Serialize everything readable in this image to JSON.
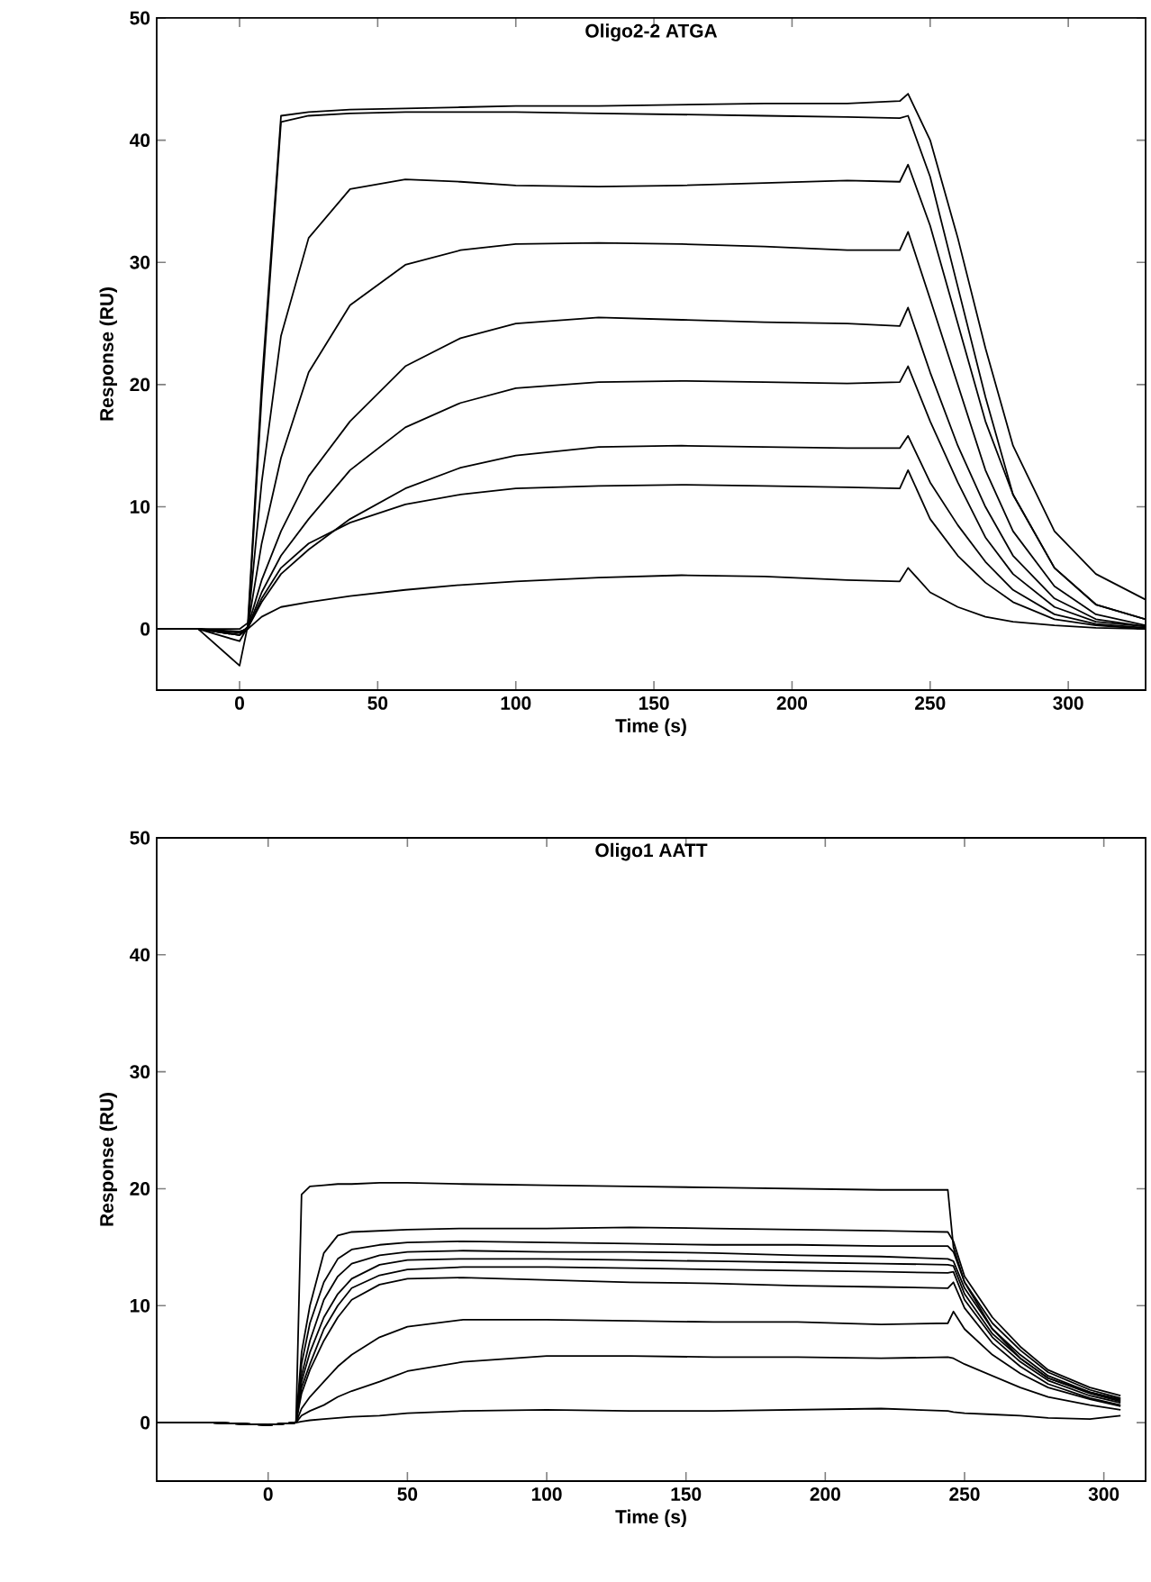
{
  "chart_data": [
    {
      "type": "line",
      "title": "Oligo2-2  ATGA",
      "xlabel": "Time (s)",
      "ylabel": "Response (RU)",
      "xlim": [
        -30,
        328
      ],
      "ylim": [
        -5,
        50
      ],
      "xticks": [
        0,
        50,
        100,
        150,
        200,
        250,
        300
      ],
      "yticks": [
        0,
        10,
        20,
        30,
        40,
        50
      ],
      "x": [
        -30,
        -15,
        0,
        3,
        8,
        15,
        25,
        40,
        60,
        80,
        100,
        130,
        160,
        190,
        220,
        239,
        242,
        250,
        260,
        270,
        280,
        295,
        310,
        328
      ],
      "series": [
        {
          "color": "#000000",
          "values": [
            0,
            0,
            0,
            0.5,
            20,
            42,
            42.3,
            42.5,
            42.6,
            42.7,
            42.8,
            42.8,
            42.9,
            43,
            43,
            43.2,
            43.8,
            40,
            32,
            23,
            15,
            8,
            4.5,
            2.4
          ]
        },
        {
          "color": "#000000",
          "values": [
            0,
            0,
            -0.5,
            0,
            19,
            41.5,
            42,
            42.2,
            42.3,
            42.3,
            42.3,
            42.2,
            42.1,
            42,
            41.9,
            41.8,
            42,
            37,
            28,
            19,
            11,
            5,
            2,
            0.8
          ]
        },
        {
          "color": "#000000",
          "values": [
            0,
            0,
            -3,
            0.3,
            12,
            24,
            32,
            36,
            36.8,
            36.6,
            36.3,
            36.2,
            36.3,
            36.5,
            36.7,
            36.6,
            38,
            33,
            25,
            17,
            11,
            5,
            2,
            0.8
          ]
        },
        {
          "color": "#000000",
          "values": [
            0,
            0,
            -1,
            0.2,
            7,
            14,
            21,
            26.5,
            29.8,
            31,
            31.5,
            31.6,
            31.5,
            31.3,
            31,
            31,
            32.5,
            27,
            20,
            13,
            8,
            3.5,
            1.2,
            0.3
          ]
        },
        {
          "color": "#000000",
          "values": [
            0,
            0,
            -0.5,
            0.2,
            4,
            8,
            12.5,
            17,
            21.5,
            23.8,
            25,
            25.5,
            25.3,
            25.1,
            25,
            24.8,
            26.3,
            21,
            15,
            10,
            6,
            2.5,
            0.8,
            0.2
          ]
        },
        {
          "color": "#000000",
          "values": [
            0,
            0,
            -0.5,
            0.1,
            3,
            6,
            9,
            13,
            16.5,
            18.5,
            19.7,
            20.2,
            20.3,
            20.2,
            20.1,
            20.2,
            21.5,
            17,
            12,
            7.5,
            4.5,
            1.8,
            0.6,
            0.2
          ]
        },
        {
          "color": "#000000",
          "values": [
            0,
            0,
            -0.3,
            0.1,
            2.2,
            4.5,
            6.5,
            9,
            11.5,
            13.2,
            14.2,
            14.9,
            15,
            14.9,
            14.8,
            14.8,
            15.8,
            12,
            8.5,
            5.5,
            3.2,
            1.2,
            0.4,
            0.1
          ]
        },
        {
          "color": "#000000",
          "values": [
            0,
            0,
            -0.3,
            0.1,
            2.5,
            5,
            7,
            8.7,
            10.2,
            11,
            11.5,
            11.7,
            11.8,
            11.7,
            11.6,
            11.5,
            13,
            9,
            6,
            3.8,
            2.2,
            0.8,
            0.3,
            0
          ]
        },
        {
          "color": "#000000",
          "values": [
            0,
            0,
            -0.2,
            0,
            1,
            1.8,
            2.2,
            2.7,
            3.2,
            3.6,
            3.9,
            4.2,
            4.4,
            4.3,
            4,
            3.9,
            5,
            3,
            1.8,
            1,
            0.6,
            0.3,
            0.1,
            0
          ]
        }
      ]
    },
    {
      "type": "line",
      "title": "Oligo1  AATT",
      "xlabel": "Time (s)",
      "ylabel": "Response (RU)",
      "xlim": [
        -40,
        315
      ],
      "ylim": [
        -5,
        50
      ],
      "xticks": [
        0,
        50,
        100,
        150,
        200,
        250,
        300
      ],
      "yticks": [
        0,
        10,
        20,
        30,
        40,
        50
      ],
      "x": [
        -40,
        -20,
        0,
        10,
        12,
        15,
        20,
        25,
        30,
        40,
        50,
        70,
        100,
        130,
        160,
        190,
        220,
        244,
        246,
        250,
        260,
        270,
        280,
        295,
        306
      ],
      "series": [
        {
          "color": "#000000",
          "values": [
            0,
            0,
            -0.2,
            0,
            19.5,
            20.2,
            20.3,
            20.4,
            20.4,
            20.5,
            20.5,
            20.4,
            20.3,
            20.2,
            20.1,
            20,
            19.9,
            19.9,
            15,
            12,
            8,
            5.5,
            3.8,
            2.6,
            2
          ]
        },
        {
          "color": "#000000",
          "values": [
            0,
            0,
            -0.2,
            0,
            6,
            10,
            14.5,
            16,
            16.3,
            16.4,
            16.5,
            16.6,
            16.6,
            16.7,
            16.6,
            16.5,
            16.4,
            16.3,
            15.5,
            12.5,
            9,
            6.5,
            4.5,
            3,
            2.3
          ]
        },
        {
          "color": "#000000",
          "values": [
            0,
            0,
            -0.2,
            0,
            5,
            8.5,
            12,
            14,
            14.8,
            15.2,
            15.4,
            15.5,
            15.4,
            15.3,
            15.2,
            15.2,
            15.1,
            15.1,
            14.6,
            12,
            8.5,
            6.2,
            4.3,
            2.8,
            2.1
          ]
        },
        {
          "color": "#000000",
          "values": [
            0,
            0,
            -0.2,
            0,
            4,
            7,
            10.5,
            12.5,
            13.6,
            14.3,
            14.6,
            14.7,
            14.6,
            14.6,
            14.5,
            14.3,
            14.2,
            14,
            13.8,
            11.5,
            8,
            5.8,
            4,
            2.6,
            1.9
          ]
        },
        {
          "color": "#000000",
          "values": [
            0,
            0,
            -0.2,
            0,
            3.5,
            6,
            9,
            11,
            12.3,
            13.5,
            13.9,
            14,
            14,
            13.9,
            13.8,
            13.7,
            13.6,
            13.5,
            13.4,
            11,
            7.6,
            5.5,
            3.8,
            2.5,
            1.8
          ]
        },
        {
          "color": "#000000",
          "values": [
            0,
            0,
            -0.2,
            0,
            3,
            5,
            8,
            10,
            11.5,
            12.6,
            13.1,
            13.3,
            13.3,
            13.2,
            13.1,
            13,
            12.9,
            12.8,
            12.9,
            10.5,
            7.3,
            5.2,
            3.6,
            2.3,
            1.7
          ]
        },
        {
          "color": "#000000",
          "values": [
            0,
            0,
            -0.2,
            0,
            2.5,
            4.5,
            7,
            9,
            10.5,
            11.8,
            12.3,
            12.4,
            12.2,
            12,
            11.9,
            11.7,
            11.6,
            11.5,
            12,
            9.8,
            6.8,
            4.8,
            3.3,
            2.1,
            1.5
          ]
        },
        {
          "color": "#000000",
          "values": [
            0,
            0,
            -0.2,
            0,
            1.2,
            2.2,
            3.5,
            4.8,
            5.8,
            7.3,
            8.2,
            8.8,
            8.8,
            8.7,
            8.6,
            8.6,
            8.4,
            8.5,
            9.5,
            8,
            5.8,
            4.2,
            3,
            2,
            1.4
          ]
        },
        {
          "color": "#000000",
          "values": [
            0,
            0,
            -0.2,
            0,
            0.6,
            1,
            1.5,
            2.2,
            2.7,
            3.5,
            4.4,
            5.2,
            5.7,
            5.7,
            5.6,
            5.6,
            5.5,
            5.6,
            5.5,
            5,
            4,
            3,
            2.2,
            1.5,
            1.1
          ]
        },
        {
          "color": "#000000",
          "values": [
            0,
            0,
            -0.2,
            0,
            0.1,
            0.2,
            0.3,
            0.4,
            0.5,
            0.6,
            0.8,
            1,
            1.1,
            1,
            1,
            1.1,
            1.2,
            1,
            0.9,
            0.8,
            0.7,
            0.6,
            0.4,
            0.3,
            0.6
          ]
        }
      ]
    }
  ]
}
